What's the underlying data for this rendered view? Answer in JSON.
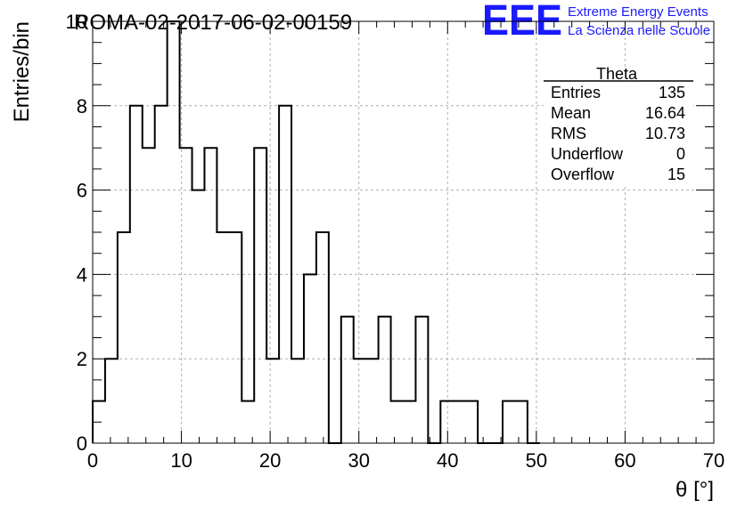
{
  "header": {
    "run_title": "ROMA-02-2017-06-02-00159",
    "logo": {
      "mark": "EEE",
      "line1": "Extreme Energy Events",
      "line2": "La Scienza nelle Scuole",
      "color": "#1a1aff"
    }
  },
  "stats_box": {
    "name": "Theta",
    "rows": [
      {
        "label": "Entries",
        "value": "135"
      },
      {
        "label": "Mean",
        "value": "16.64"
      },
      {
        "label": "RMS",
        "value": "10.73"
      },
      {
        "label": "Underflow",
        "value": "0"
      },
      {
        "label": "Overflow",
        "value": "15"
      }
    ]
  },
  "chart_data": {
    "type": "bar",
    "style": "step-histogram",
    "title": "ROMA-02-2017-06-02-00159",
    "xlabel": "θ [°]",
    "ylabel": "Entries/bin",
    "xlim": [
      0,
      70
    ],
    "ylim": [
      0,
      10
    ],
    "bin_width": 1.4,
    "bin_low_edges": [
      0,
      1.4,
      2.8,
      4.2,
      5.6,
      7.0,
      8.4,
      9.8,
      11.2,
      12.6,
      14.0,
      15.4,
      16.8,
      18.2,
      19.6,
      21.0,
      22.4,
      23.8,
      25.2,
      26.6,
      28.0,
      29.4,
      30.8,
      32.2,
      33.6,
      35.0,
      36.4,
      37.8,
      39.2,
      40.6,
      42.0,
      43.4,
      44.8,
      46.2,
      47.6,
      49.0
    ],
    "values": [
      1,
      2,
      5,
      8,
      7,
      8,
      10,
      7,
      6,
      7,
      5,
      5,
      1,
      7,
      2,
      8,
      2,
      4,
      5,
      0,
      3,
      2,
      2,
      3,
      1,
      1,
      3,
      0,
      1,
      1,
      1,
      0,
      0,
      1,
      1,
      0
    ],
    "x_ticks": [
      "0",
      "10",
      "20",
      "30",
      "40",
      "50",
      "60",
      "70"
    ],
    "y_ticks": [
      "0",
      "2",
      "4",
      "6",
      "8",
      "10"
    ],
    "grid": true,
    "line_color": "#000000",
    "grid_color": "#b0b0b0"
  }
}
